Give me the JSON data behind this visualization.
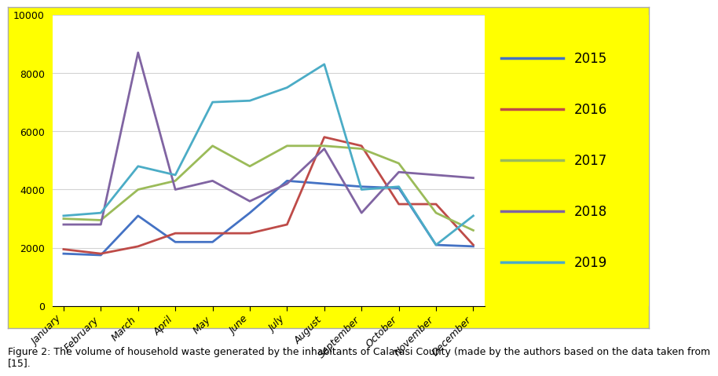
{
  "months": [
    "January",
    "February",
    "March",
    "April",
    "May",
    "June",
    "July",
    "August",
    "September",
    "October",
    "November",
    "December"
  ],
  "series": {
    "2015": [
      1800,
      1750,
      3100,
      2200,
      2200,
      3200,
      4300,
      4200,
      4100,
      4050,
      2100,
      2050
    ],
    "2016": [
      1950,
      1800,
      2050,
      2500,
      2500,
      2500,
      2800,
      5800,
      5500,
      3500,
      3500,
      2100
    ],
    "2017": [
      3000,
      2950,
      4000,
      4300,
      5500,
      4800,
      5500,
      5500,
      5400,
      4900,
      3200,
      2600
    ],
    "2018": [
      2800,
      2800,
      8700,
      4000,
      4300,
      3600,
      4200,
      5400,
      3200,
      4600,
      4500,
      4400
    ],
    "2019": [
      3100,
      3200,
      4800,
      4500,
      7000,
      7050,
      7500,
      8300,
      4000,
      4100,
      2100,
      3100
    ]
  },
  "colors": {
    "2015": "#4472C4",
    "2016": "#BE4B48",
    "2017": "#9BBB59",
    "2018": "#8064A2",
    "2019": "#4BACC6"
  },
  "outer_bg": "#FFFF00",
  "plot_bg": "#FFFFFF",
  "fig_bg": "#FFFFFF",
  "ylim": [
    0,
    10000
  ],
  "yticks": [
    0,
    2000,
    4000,
    6000,
    8000,
    10000
  ],
  "caption": "Figure 2: The volume of household waste generated by the inhabitants of Calarasi County (made by the authors based on the data taken from\n[15]."
}
